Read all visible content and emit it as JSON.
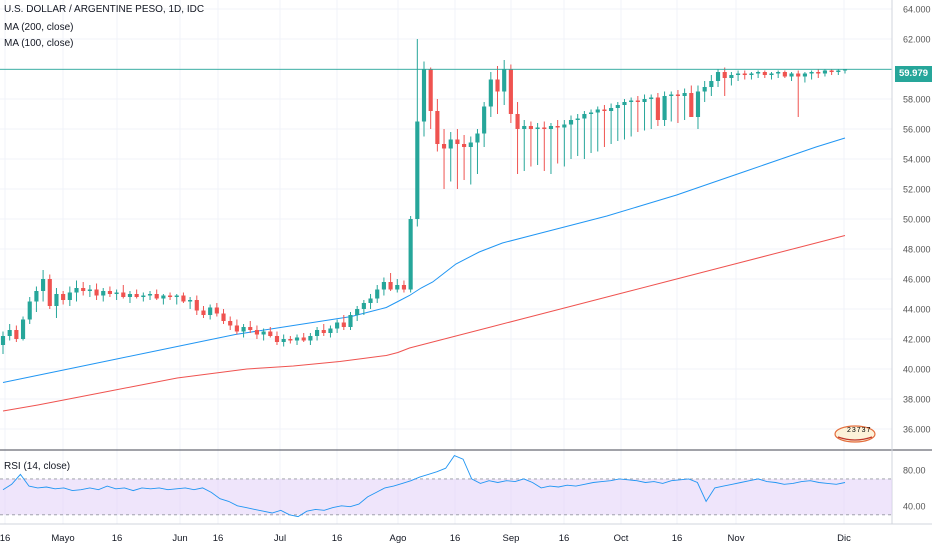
{
  "chart_data": {
    "type": "candlestick",
    "title": "U.S. DOLLAR / ARGENTINE PESO, 1D, IDC",
    "indicators": [
      "MA (200, close)",
      "MA (100, close)"
    ],
    "last_price": "59.979",
    "y_ticks": [
      "64.000",
      "62.000",
      "60.000",
      "58.000",
      "56.000",
      "54.000",
      "52.000",
      "50.000",
      "48.000",
      "46.000",
      "44.000",
      "42.000",
      "40.000",
      "38.000",
      "36.000"
    ],
    "ylim": [
      34.6,
      64.6
    ],
    "x_ticks": [
      "16",
      "Mayo",
      "16",
      "Jun",
      "16",
      "Jul",
      "16",
      "Ago",
      "16",
      "Sep",
      "16",
      "Oct",
      "16",
      "Nov",
      "Dic"
    ],
    "rsi": {
      "label": "RSI (14, close)",
      "ticks": [
        "80.00",
        "40.00"
      ],
      "band": [
        30,
        70
      ],
      "ylim": [
        22,
        100
      ],
      "values": [
        58,
        64,
        75,
        62,
        60,
        61,
        59,
        60,
        57,
        58,
        60,
        58,
        62,
        59,
        60,
        57,
        60,
        59,
        60,
        58,
        59,
        60,
        58,
        60,
        55,
        48,
        45,
        40,
        38,
        36,
        34,
        32,
        35,
        30,
        28,
        34,
        36,
        35,
        38,
        40,
        39,
        42,
        50,
        55,
        60,
        62,
        65,
        68,
        72,
        75,
        78,
        82,
        96,
        92,
        70,
        65,
        68,
        66,
        68,
        67,
        70,
        66,
        60,
        62,
        61,
        63,
        62,
        64,
        66,
        67,
        68,
        70,
        69,
        68,
        66,
        67,
        65,
        68,
        69,
        70,
        66,
        45,
        60,
        62,
        64,
        66,
        68,
        70,
        67,
        66,
        64,
        65,
        67,
        68,
        66,
        65,
        64,
        66
      ]
    },
    "series": [
      {
        "name": "MA (200, close)",
        "color": "#ef5350",
        "values": [
          [
            0,
            37.2
          ],
          [
            6,
            37.6
          ],
          [
            10,
            37.9
          ],
          [
            14,
            38.2
          ],
          [
            18,
            38.5
          ],
          [
            22,
            38.8
          ],
          [
            26,
            39.1
          ],
          [
            30,
            39.4
          ],
          [
            34,
            39.6
          ],
          [
            38,
            39.8
          ],
          [
            42,
            40.0
          ],
          [
            46,
            40.1
          ],
          [
            50,
            40.2
          ],
          [
            54,
            40.35
          ],
          [
            58,
            40.5
          ],
          [
            62,
            40.7
          ],
          [
            66,
            40.9
          ],
          [
            68,
            41.1
          ],
          [
            70,
            41.4
          ],
          [
            72,
            41.6
          ],
          [
            74,
            41.8
          ],
          [
            78,
            42.2
          ],
          [
            84,
            42.8
          ],
          [
            90,
            43.4
          ],
          [
            96,
            44.0
          ],
          [
            102,
            44.6
          ],
          [
            108,
            45.2
          ],
          [
            114,
            45.8
          ],
          [
            120,
            46.4
          ],
          [
            126,
            47.0
          ],
          [
            132,
            47.6
          ],
          [
            138,
            48.2
          ],
          [
            145,
            48.9
          ]
        ]
      },
      {
        "name": "MA (100, close)",
        "color": "#2196f3",
        "values": [
          [
            0,
            39.1
          ],
          [
            5,
            39.5
          ],
          [
            10,
            39.9
          ],
          [
            15,
            40.3
          ],
          [
            20,
            40.7
          ],
          [
            25,
            41.1
          ],
          [
            30,
            41.5
          ],
          [
            35,
            41.9
          ],
          [
            40,
            42.3
          ],
          [
            45,
            42.6
          ],
          [
            50,
            42.9
          ],
          [
            55,
            43.2
          ],
          [
            60,
            43.5
          ],
          [
            63,
            43.8
          ],
          [
            66,
            44.1
          ],
          [
            68,
            44.5
          ],
          [
            70,
            44.9
          ],
          [
            72,
            45.4
          ],
          [
            74,
            45.8
          ],
          [
            76,
            46.4
          ],
          [
            78,
            47.0
          ],
          [
            82,
            47.8
          ],
          [
            86,
            48.4
          ],
          [
            92,
            49.0
          ],
          [
            98,
            49.6
          ],
          [
            104,
            50.2
          ],
          [
            110,
            50.9
          ],
          [
            116,
            51.6
          ],
          [
            122,
            52.4
          ],
          [
            128,
            53.2
          ],
          [
            134,
            54.0
          ],
          [
            140,
            54.8
          ],
          [
            145,
            55.4
          ]
        ]
      }
    ],
    "candles": [
      [
        41.6,
        42.5,
        41.0,
        42.2
      ],
      [
        42.2,
        43.0,
        41.9,
        42.6
      ],
      [
        42.6,
        42.9,
        41.8,
        42.0
      ],
      [
        42.0,
        43.5,
        41.9,
        43.3
      ],
      [
        43.3,
        44.8,
        43.0,
        44.5
      ],
      [
        44.5,
        45.5,
        43.8,
        45.2
      ],
      [
        45.2,
        46.6,
        44.5,
        46.0
      ],
      [
        46.0,
        46.3,
        44.0,
        44.2
      ],
      [
        44.2,
        45.4,
        43.4,
        45.0
      ],
      [
        45.0,
        45.2,
        44.3,
        44.6
      ],
      [
        44.6,
        45.5,
        44.2,
        45.1
      ],
      [
        45.1,
        45.9,
        44.5,
        45.4
      ],
      [
        45.4,
        45.8,
        44.9,
        45.2
      ],
      [
        45.2,
        45.6,
        44.8,
        45.3
      ],
      [
        45.3,
        45.7,
        44.6,
        44.9
      ],
      [
        44.9,
        45.4,
        44.5,
        45.2
      ],
      [
        45.2,
        45.5,
        44.8,
        45.0
      ],
      [
        45.0,
        45.3,
        44.6,
        45.1
      ],
      [
        45.1,
        45.6,
        44.7,
        44.8
      ],
      [
        44.8,
        45.2,
        44.4,
        45.0
      ],
      [
        45.0,
        45.3,
        44.7,
        44.8
      ],
      [
        44.8,
        45.1,
        44.5,
        44.9
      ],
      [
        44.9,
        45.2,
        44.6,
        45.0
      ],
      [
        45.0,
        45.3,
        44.6,
        44.7
      ],
      [
        44.7,
        45.0,
        44.3,
        44.9
      ],
      [
        44.9,
        45.1,
        44.6,
        44.8
      ],
      [
        44.8,
        45.0,
        44.3,
        44.9
      ],
      [
        44.9,
        45.1,
        44.4,
        44.5
      ],
      [
        44.5,
        44.8,
        44.0,
        44.6
      ],
      [
        44.6,
        44.9,
        43.6,
        43.9
      ],
      [
        43.9,
        44.2,
        43.4,
        43.6
      ],
      [
        43.6,
        44.3,
        43.3,
        44.1
      ],
      [
        44.1,
        44.4,
        43.5,
        43.7
      ],
      [
        43.7,
        44.0,
        43.0,
        43.2
      ],
      [
        43.2,
        43.5,
        42.6,
        42.9
      ],
      [
        42.9,
        43.3,
        42.3,
        42.5
      ],
      [
        42.5,
        43.0,
        42.1,
        42.8
      ],
      [
        42.8,
        43.2,
        42.4,
        42.6
      ],
      [
        42.6,
        42.9,
        42.0,
        42.3
      ],
      [
        42.3,
        42.7,
        41.9,
        42.5
      ],
      [
        42.5,
        42.8,
        42.1,
        42.2
      ],
      [
        42.2,
        42.5,
        41.6,
        41.8
      ],
      [
        41.8,
        42.3,
        41.5,
        42.0
      ],
      [
        42.0,
        42.2,
        41.7,
        41.9
      ],
      [
        41.9,
        42.3,
        41.6,
        42.1
      ],
      [
        42.1,
        42.4,
        41.8,
        41.9
      ],
      [
        41.9,
        42.4,
        41.6,
        42.2
      ],
      [
        42.2,
        42.8,
        41.9,
        42.6
      ],
      [
        42.6,
        43.0,
        42.2,
        42.4
      ],
      [
        42.4,
        42.9,
        42.1,
        42.7
      ],
      [
        42.7,
        43.3,
        42.4,
        43.1
      ],
      [
        43.1,
        43.6,
        42.6,
        42.8
      ],
      [
        42.8,
        43.8,
        42.6,
        43.6
      ],
      [
        43.6,
        44.2,
        43.2,
        44.0
      ],
      [
        44.0,
        44.6,
        43.6,
        44.4
      ],
      [
        44.4,
        45.0,
        44.0,
        44.7
      ],
      [
        44.7,
        45.6,
        44.4,
        45.3
      ],
      [
        45.3,
        46.1,
        44.9,
        45.8
      ],
      [
        45.8,
        46.4,
        45.2,
        45.3
      ],
      [
        45.3,
        46.0,
        45.1,
        45.6
      ],
      [
        45.6,
        45.9,
        45.1,
        45.3
      ],
      [
        45.3,
        50.2,
        45.1,
        50.0
      ],
      [
        50.0,
        62.0,
        49.5,
        56.5
      ],
      [
        56.5,
        60.5,
        55.5,
        60.0
      ],
      [
        60.0,
        60.1,
        56.0,
        57.2
      ],
      [
        57.2,
        58.0,
        54.5,
        55.0
      ],
      [
        55.0,
        56.0,
        52.0,
        54.7
      ],
      [
        54.7,
        55.8,
        52.5,
        55.3
      ],
      [
        55.3,
        56.0,
        52.0,
        55.0
      ],
      [
        55.0,
        55.6,
        52.6,
        54.8
      ],
      [
        54.8,
        55.5,
        52.3,
        55.1
      ],
      [
        55.1,
        56.0,
        53.0,
        55.7
      ],
      [
        55.7,
        57.8,
        54.8,
        57.5
      ],
      [
        57.5,
        59.8,
        56.8,
        59.3
      ],
      [
        59.3,
        60.2,
        57.0,
        58.5
      ],
      [
        58.5,
        60.6,
        57.6,
        60.0
      ],
      [
        60.0,
        60.3,
        56.4,
        57.0
      ],
      [
        57.0,
        57.8,
        53.0,
        56.0
      ],
      [
        56.0,
        56.6,
        53.2,
        56.2
      ],
      [
        56.2,
        56.5,
        53.5,
        56.0
      ],
      [
        56.0,
        56.4,
        53.6,
        56.1
      ],
      [
        56.1,
        56.5,
        53.2,
        56.0
      ],
      [
        56.0,
        56.4,
        53.0,
        56.2
      ],
      [
        56.2,
        56.6,
        53.7,
        56.1
      ],
      [
        56.1,
        56.6,
        53.5,
        56.3
      ],
      [
        56.3,
        56.9,
        54.0,
        56.6
      ],
      [
        56.6,
        57.0,
        54.2,
        56.7
      ],
      [
        56.7,
        57.2,
        54.0,
        57.0
      ],
      [
        57.0,
        57.3,
        54.4,
        57.1
      ],
      [
        57.1,
        57.5,
        54.5,
        57.3
      ],
      [
        57.3,
        57.6,
        54.8,
        57.2
      ],
      [
        57.2,
        57.7,
        55.0,
        57.4
      ],
      [
        57.4,
        57.8,
        55.2,
        57.6
      ],
      [
        57.6,
        58.0,
        55.3,
        57.8
      ],
      [
        57.8,
        58.1,
        55.5,
        57.9
      ],
      [
        57.9,
        58.2,
        55.8,
        57.8
      ],
      [
        57.8,
        58.3,
        55.9,
        58.0
      ],
      [
        58.0,
        58.3,
        56.0,
        58.1
      ],
      [
        58.1,
        58.4,
        56.2,
        56.6
      ],
      [
        56.6,
        58.5,
        56.2,
        58.2
      ],
      [
        58.2,
        58.5,
        56.5,
        58.3
      ],
      [
        58.3,
        58.6,
        56.4,
        58.2
      ],
      [
        58.2,
        58.7,
        56.6,
        58.4
      ],
      [
        58.4,
        58.9,
        57.0,
        56.8
      ],
      [
        56.8,
        58.9,
        56.0,
        58.5
      ],
      [
        58.5,
        59.2,
        57.8,
        58.8
      ],
      [
        58.8,
        59.6,
        58.2,
        59.2
      ],
      [
        59.2,
        60.0,
        58.8,
        59.8
      ],
      [
        59.8,
        60.1,
        58.2,
        59.4
      ],
      [
        59.4,
        59.8,
        58.9,
        59.6
      ],
      [
        59.6,
        59.9,
        59.2,
        59.7
      ],
      [
        59.7,
        59.9,
        59.3,
        59.6
      ],
      [
        59.6,
        59.8,
        59.3,
        59.7
      ],
      [
        59.7,
        59.9,
        59.4,
        59.8
      ],
      [
        59.8,
        59.9,
        59.4,
        59.6
      ],
      [
        59.6,
        59.8,
        59.3,
        59.7
      ],
      [
        59.7,
        59.9,
        59.4,
        59.8
      ],
      [
        59.8,
        59.9,
        59.4,
        59.5
      ],
      [
        59.5,
        59.8,
        59.2,
        59.7
      ],
      [
        59.7,
        59.9,
        56.8,
        59.5
      ],
      [
        59.5,
        59.8,
        59.1,
        59.7
      ],
      [
        59.7,
        59.9,
        59.3,
        59.8
      ],
      [
        59.8,
        60.0,
        59.4,
        59.7
      ],
      [
        59.7,
        60.0,
        59.5,
        59.9
      ],
      [
        59.9,
        60.0,
        59.6,
        59.8
      ],
      [
        59.8,
        60.0,
        59.6,
        59.9
      ],
      [
        59.9,
        60.0,
        59.7,
        59.979
      ]
    ]
  },
  "logo": {
    "text": "23737"
  }
}
